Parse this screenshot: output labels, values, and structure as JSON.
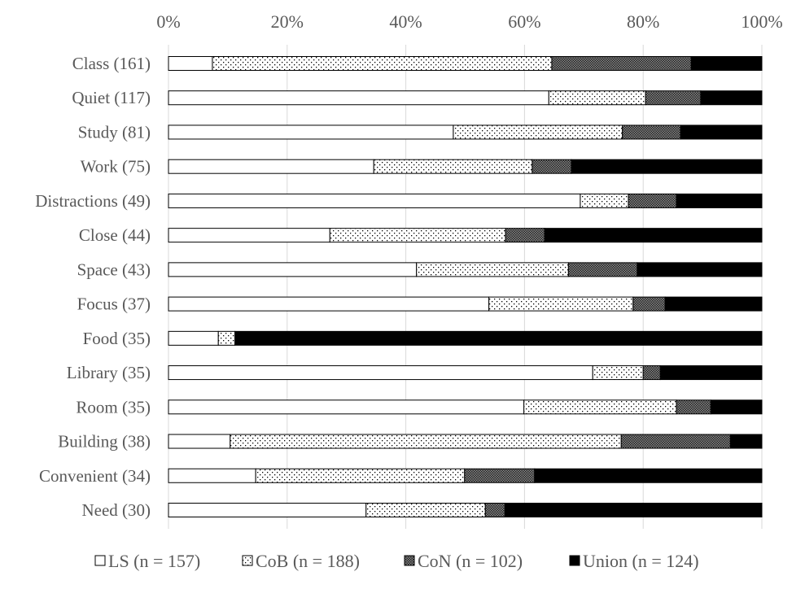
{
  "chart_data": {
    "type": "bar",
    "orientation": "horizontal",
    "stacked": "100%",
    "title": "",
    "xlabel": "",
    "ylabel": "",
    "xlim": [
      0,
      100
    ],
    "x_ticks": [
      "0%",
      "20%",
      "40%",
      "60%",
      "80%",
      "100%"
    ],
    "grid": "vertical",
    "legend_position": "bottom",
    "categories": [
      "Class (161)",
      "Quiet (117)",
      "Study (81)",
      "Work (75)",
      "Distractions (49)",
      "Close (44)",
      "Space (43)",
      "Focus (37)",
      "Food (35)",
      "Library (35)",
      "Room (35)",
      "Building (38)",
      "Convenient (34)",
      "Need (30)"
    ],
    "series": [
      {
        "name": "LS (n = 157)",
        "fill": "white",
        "values": [
          7.4,
          64.1,
          48.0,
          34.6,
          69.4,
          27.2,
          41.8,
          54.0,
          8.4,
          71.5,
          59.9,
          10.4,
          14.7,
          33.3
        ]
      },
      {
        "name": "CoB (n = 188)",
        "fill": "sparse-dots",
        "values": [
          57.2,
          16.3,
          28.5,
          26.7,
          8.1,
          29.6,
          25.6,
          24.3,
          2.8,
          8.5,
          25.7,
          65.9,
          35.2,
          20.1
        ]
      },
      {
        "name": "CoN (n = 102)",
        "fill": "dense-dots",
        "values": [
          23.5,
          9.3,
          9.8,
          6.6,
          8.1,
          6.6,
          11.6,
          5.4,
          0.0,
          2.9,
          5.8,
          18.4,
          11.8,
          3.3
        ]
      },
      {
        "name": "Union (n = 124)",
        "fill": "black",
        "values": [
          11.9,
          10.3,
          13.7,
          32.1,
          14.4,
          36.6,
          21.0,
          16.3,
          88.8,
          17.1,
          8.6,
          5.3,
          38.3,
          43.3
        ]
      }
    ]
  }
}
